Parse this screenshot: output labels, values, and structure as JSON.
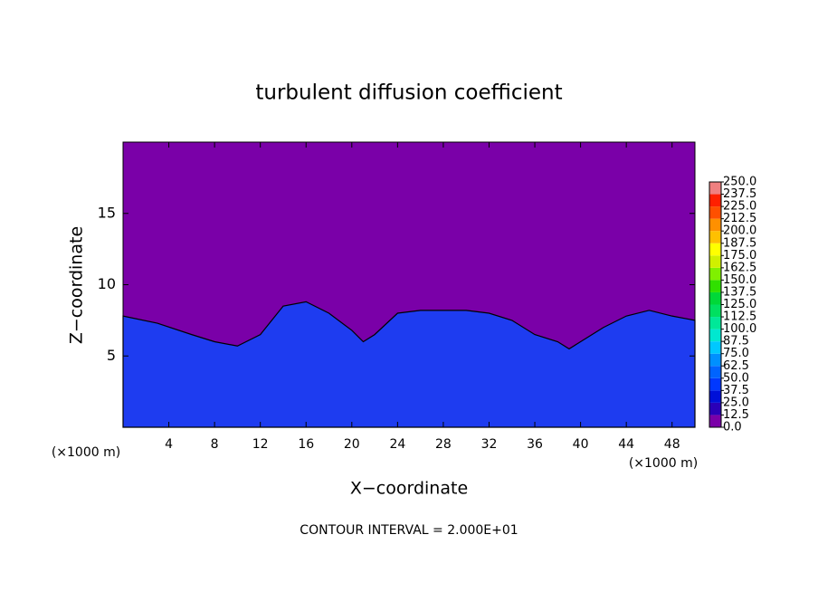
{
  "chart_data": {
    "type": "contour",
    "title": "turbulent diffusion coefficient",
    "xlabel": "X−coordinate",
    "ylabel": "Z−coordinate",
    "x_unit_left": "(×1000 m)",
    "x_unit_right": "(×1000 m)",
    "note": "CONTOUR INTERVAL = 2.000E+01",
    "xlim": [
      0,
      50
    ],
    "ylim": [
      0,
      20
    ],
    "xticks": [
      4,
      8,
      12,
      16,
      20,
      24,
      28,
      32,
      36,
      40,
      44,
      48
    ],
    "yticks": [
      5,
      10,
      15
    ],
    "background_color": "#7a00a8",
    "layer_color": "#1e3cf0",
    "layer_top": {
      "x": [
        0,
        3,
        6,
        8,
        10,
        12,
        14,
        16,
        18,
        20,
        21,
        22,
        24,
        26,
        28,
        30,
        32,
        34,
        36,
        38,
        39,
        40,
        42,
        44,
        46,
        48,
        50
      ],
      "z": [
        7.8,
        7.3,
        6.5,
        6.0,
        5.7,
        6.5,
        8.5,
        8.8,
        8.0,
        6.8,
        6.0,
        6.5,
        8.0,
        8.2,
        8.2,
        8.2,
        8.0,
        7.5,
        6.5,
        6.0,
        5.5,
        6.0,
        7.0,
        7.8,
        8.2,
        7.8,
        7.5
      ]
    },
    "colorbar": {
      "levels": [
        {
          "value": 0,
          "label": "0.0"
        },
        {
          "value": 12.5,
          "label": "12.5"
        },
        {
          "value": 25,
          "label": "25.0"
        },
        {
          "value": 37.5,
          "label": "37.5"
        },
        {
          "value": 50,
          "label": "50.0"
        },
        {
          "value": 62.5,
          "label": "62.5"
        },
        {
          "value": 75,
          "label": "75.0"
        },
        {
          "value": 87.5,
          "label": "87.5"
        },
        {
          "value": 100,
          "label": "100.0"
        },
        {
          "value": 112.5,
          "label": "112.5"
        },
        {
          "value": 125,
          "label": "125.0"
        },
        {
          "value": 137.5,
          "label": "137.5"
        },
        {
          "value": 150,
          "label": "150.0"
        },
        {
          "value": 162.5,
          "label": "162.5"
        },
        {
          "value": 175,
          "label": "175.0"
        },
        {
          "value": 187.5,
          "label": "187.5"
        },
        {
          "value": 200,
          "label": "200.0"
        },
        {
          "value": 212.5,
          "label": "212.5"
        },
        {
          "value": 225,
          "label": "225.0"
        },
        {
          "value": 237.5,
          "label": "237.5"
        },
        {
          "value": 250,
          "label": "250.0"
        }
      ],
      "colors": [
        "#7a00a8",
        "#2a00b8",
        "#0010d8",
        "#0038ff",
        "#0064ff",
        "#0090ff",
        "#00c8ff",
        "#00e8d0",
        "#00e898",
        "#00e060",
        "#00d838",
        "#30e000",
        "#80f000",
        "#d0f000",
        "#ffff00",
        "#ffc000",
        "#ff9000",
        "#ff5000",
        "#ff2000",
        "#f08080"
      ]
    }
  }
}
